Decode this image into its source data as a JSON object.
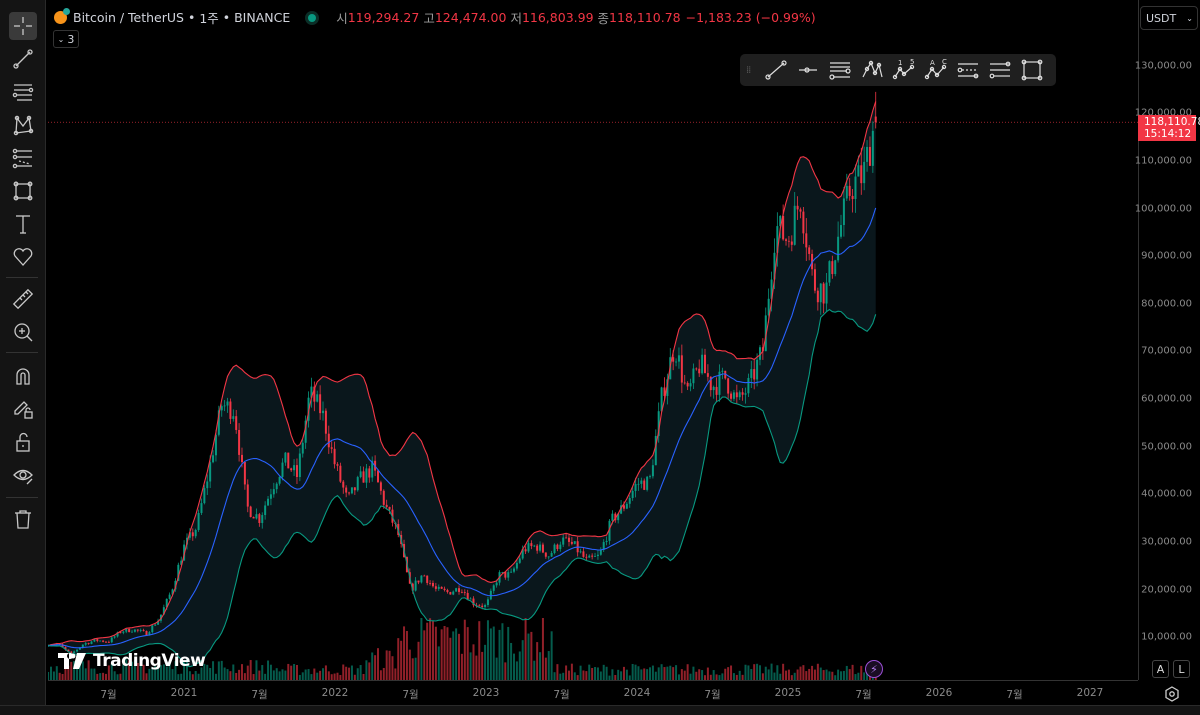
{
  "header": {
    "symbol": "Bitcoin / TetherUS",
    "interval": "1주",
    "exchange": "BINANCE",
    "sep": "•",
    "open_label": "시",
    "open": "119,294.27",
    "high_label": "고",
    "high": "124,474.00",
    "low_label": "저",
    "low": "116,803.99",
    "close_label": "종",
    "close": "118,110.78",
    "change": "−1,183.23 (−0.99%)",
    "legend_count": "3"
  },
  "toolbar": {
    "items": [
      "crosshair-icon",
      "trend-line-icon",
      "horizontal-lines-icon",
      "pattern-icon",
      "fib-icon",
      "rectangle-icon",
      "text-icon",
      "heart-icon",
      "ruler-icon",
      "zoom-in-icon",
      "magnet-icon",
      "lock-drawing-icon",
      "lock-icon",
      "eye-icon",
      "trash-icon"
    ]
  },
  "floating_toolbar": {
    "items": [
      "trend-line-icon",
      "horizontal-ray-icon",
      "parallel-channel-icon",
      "xabcd-pattern-icon",
      "elliott-impulse-icon",
      "elliott-correction-icon",
      "fib-retracement-icon",
      "fib-extension-icon",
      "rectangle-icon"
    ],
    "wave1": "1",
    "wave5": "5",
    "waveA": "A",
    "waveC": "C"
  },
  "price_axis": {
    "unit": "USDT",
    "ticks": [
      "130,000.00",
      "120,000.00",
      "110,000.00",
      "100,000.00",
      "90,000.00",
      "80,000.00",
      "70,000.00",
      "60,000.00",
      "50,000.00",
      "40,000.00",
      "30,000.00",
      "20,000.00",
      "10,000.00"
    ],
    "last_price": "118,110.78",
    "countdown": "15:14:12"
  },
  "time_axis": {
    "ticks": [
      "7월",
      "2021",
      "7월",
      "2022",
      "7월",
      "2023",
      "7월",
      "2024",
      "7월",
      "2025",
      "7월",
      "2026",
      "7월",
      "2027"
    ]
  },
  "buttons": {
    "auto": "A",
    "log": "L"
  },
  "logo": "TradingView",
  "colors": {
    "up": "#089981",
    "down": "#f23645",
    "bb_upper": "#f23645",
    "bb_basis": "#2962ff",
    "bb_lower": "#089981",
    "accent": "#f23645"
  },
  "chart_data": {
    "type": "candlestick",
    "interval": "1W",
    "indicators": [
      "Bollinger Bands (20, 2)",
      "Volume"
    ],
    "ylim": [
      0,
      135000
    ],
    "xlim": [
      "2020-02",
      "2027-04"
    ],
    "monthly_close": [
      [
        "2020-02",
        8600
      ],
      [
        "2020-03",
        6400
      ],
      [
        "2020-04",
        8600
      ],
      [
        "2020-05",
        9400
      ],
      [
        "2020-06",
        9100
      ],
      [
        "2020-07",
        11300
      ],
      [
        "2020-08",
        11600
      ],
      [
        "2020-09",
        10800
      ],
      [
        "2020-10",
        13800
      ],
      [
        "2020-11",
        19700
      ],
      [
        "2020-12",
        29000
      ],
      [
        "2021-01",
        33100
      ],
      [
        "2021-02",
        45200
      ],
      [
        "2021-03",
        58800
      ],
      [
        "2021-04",
        57700
      ],
      [
        "2021-05",
        37300
      ],
      [
        "2021-06",
        35000
      ],
      [
        "2021-07",
        41500
      ],
      [
        "2021-08",
        47100
      ],
      [
        "2021-09",
        43800
      ],
      [
        "2021-10",
        61300
      ],
      [
        "2021-11",
        57000
      ],
      [
        "2021-12",
        46200
      ],
      [
        "2022-01",
        38500
      ],
      [
        "2022-02",
        43200
      ],
      [
        "2022-03",
        45500
      ],
      [
        "2022-04",
        37600
      ],
      [
        "2022-05",
        31800
      ],
      [
        "2022-06",
        19900
      ],
      [
        "2022-07",
        23300
      ],
      [
        "2022-08",
        20000
      ],
      [
        "2022-09",
        19400
      ],
      [
        "2022-10",
        20500
      ],
      [
        "2022-11",
        17200
      ],
      [
        "2022-12",
        16500
      ],
      [
        "2023-01",
        23100
      ],
      [
        "2023-02",
        23100
      ],
      [
        "2023-03",
        28500
      ],
      [
        "2023-04",
        29200
      ],
      [
        "2023-05",
        27200
      ],
      [
        "2023-06",
        30500
      ],
      [
        "2023-07",
        29200
      ],
      [
        "2023-08",
        26000
      ],
      [
        "2023-09",
        27000
      ],
      [
        "2023-10",
        34600
      ],
      [
        "2023-11",
        37700
      ],
      [
        "2023-12",
        42300
      ],
      [
        "2024-01",
        42600
      ],
      [
        "2024-02",
        61100
      ],
      [
        "2024-03",
        71300
      ],
      [
        "2024-04",
        60600
      ],
      [
        "2024-05",
        67500
      ],
      [
        "2024-06",
        62700
      ],
      [
        "2024-07",
        64600
      ],
      [
        "2024-08",
        59000
      ],
      [
        "2024-09",
        63300
      ],
      [
        "2024-10",
        70300
      ],
      [
        "2024-11",
        96400
      ],
      [
        "2024-12",
        93400
      ],
      [
        "2025-01",
        102400
      ],
      [
        "2025-02",
        84300
      ],
      [
        "2025-03",
        82500
      ],
      [
        "2025-04",
        94200
      ],
      [
        "2025-05",
        104600
      ],
      [
        "2025-06",
        107100
      ],
      [
        "2025-07",
        119300
      ]
    ],
    "last_bar": {
      "open": 119294.27,
      "high": 124474.0,
      "low": 116803.99,
      "close": 118110.78
    }
  }
}
